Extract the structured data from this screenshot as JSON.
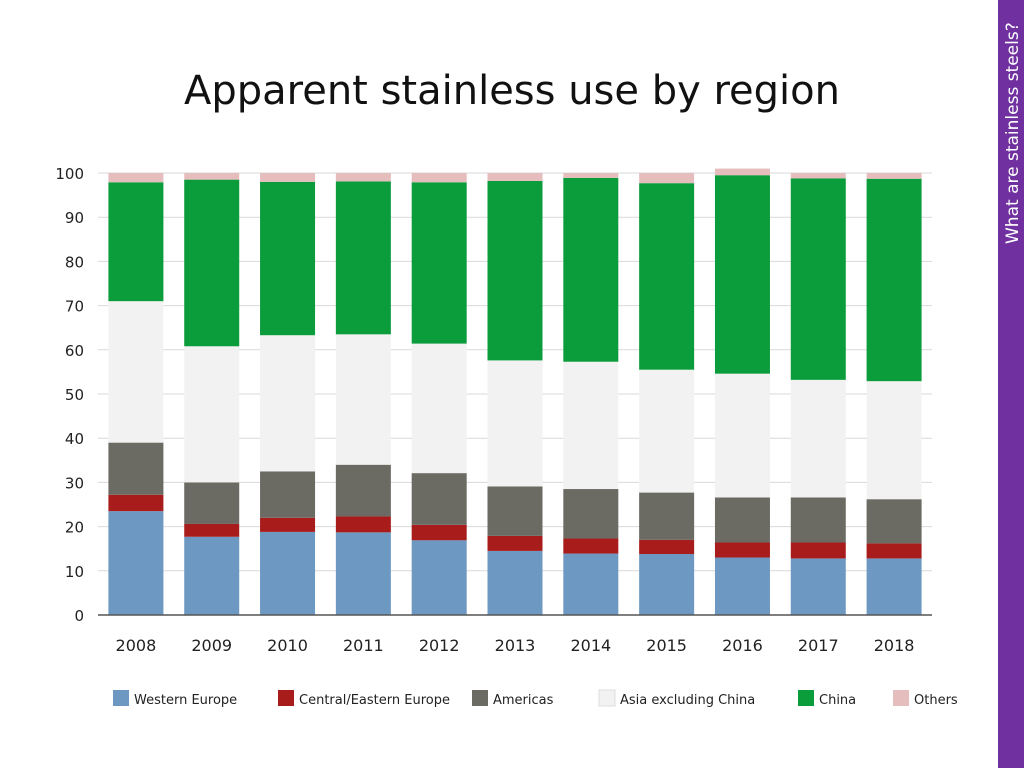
{
  "slide": {
    "title": "Apparent stainless use by region",
    "side_label": "What are stainless steels?"
  },
  "colors": {
    "accent_bar": "#7030a0"
  },
  "chart_data": {
    "type": "bar",
    "stacked": true,
    "categories": [
      "2008",
      "2009",
      "2010",
      "2011",
      "2012",
      "2013",
      "2014",
      "2015",
      "2016",
      "2017",
      "2018"
    ],
    "ylim": [
      0,
      100
    ],
    "yticks": [
      0,
      10,
      20,
      30,
      40,
      50,
      60,
      70,
      80,
      90,
      100
    ],
    "grid": true,
    "legend_position": "bottom",
    "series": [
      {
        "name": "Western Europe",
        "color": "#6d98c2",
        "values": [
          23.5,
          17.7,
          18.8,
          18.7,
          16.9,
          14.5,
          13.9,
          13.8,
          13.0,
          12.8,
          12.8
        ]
      },
      {
        "name": "Central/Eastern Europe",
        "color": "#a81c1c",
        "values": [
          3.7,
          2.9,
          3.2,
          3.6,
          3.5,
          3.4,
          3.4,
          3.2,
          3.4,
          3.6,
          3.4
        ]
      },
      {
        "name": "Americas",
        "color": "#6b6a63",
        "values": [
          11.8,
          9.4,
          10.5,
          11.7,
          11.7,
          11.2,
          11.2,
          10.7,
          10.2,
          10.2,
          10.0
        ]
      },
      {
        "name": "Asia excluding China",
        "color": "#f2f2f2",
        "values": [
          32.0,
          30.8,
          30.8,
          29.5,
          29.3,
          28.5,
          28.8,
          27.8,
          28.0,
          26.6,
          26.7
        ]
      },
      {
        "name": "China",
        "color": "#0b9c3b",
        "values": [
          26.9,
          37.7,
          34.7,
          34.6,
          36.5,
          40.6,
          41.6,
          42.2,
          44.9,
          45.6,
          45.8
        ]
      },
      {
        "name": "Others",
        "color": "#e6bdbd",
        "values": [
          2.1,
          1.5,
          2.0,
          1.9,
          2.1,
          1.8,
          1.1,
          2.3,
          1.5,
          1.2,
          1.3
        ]
      }
    ]
  }
}
